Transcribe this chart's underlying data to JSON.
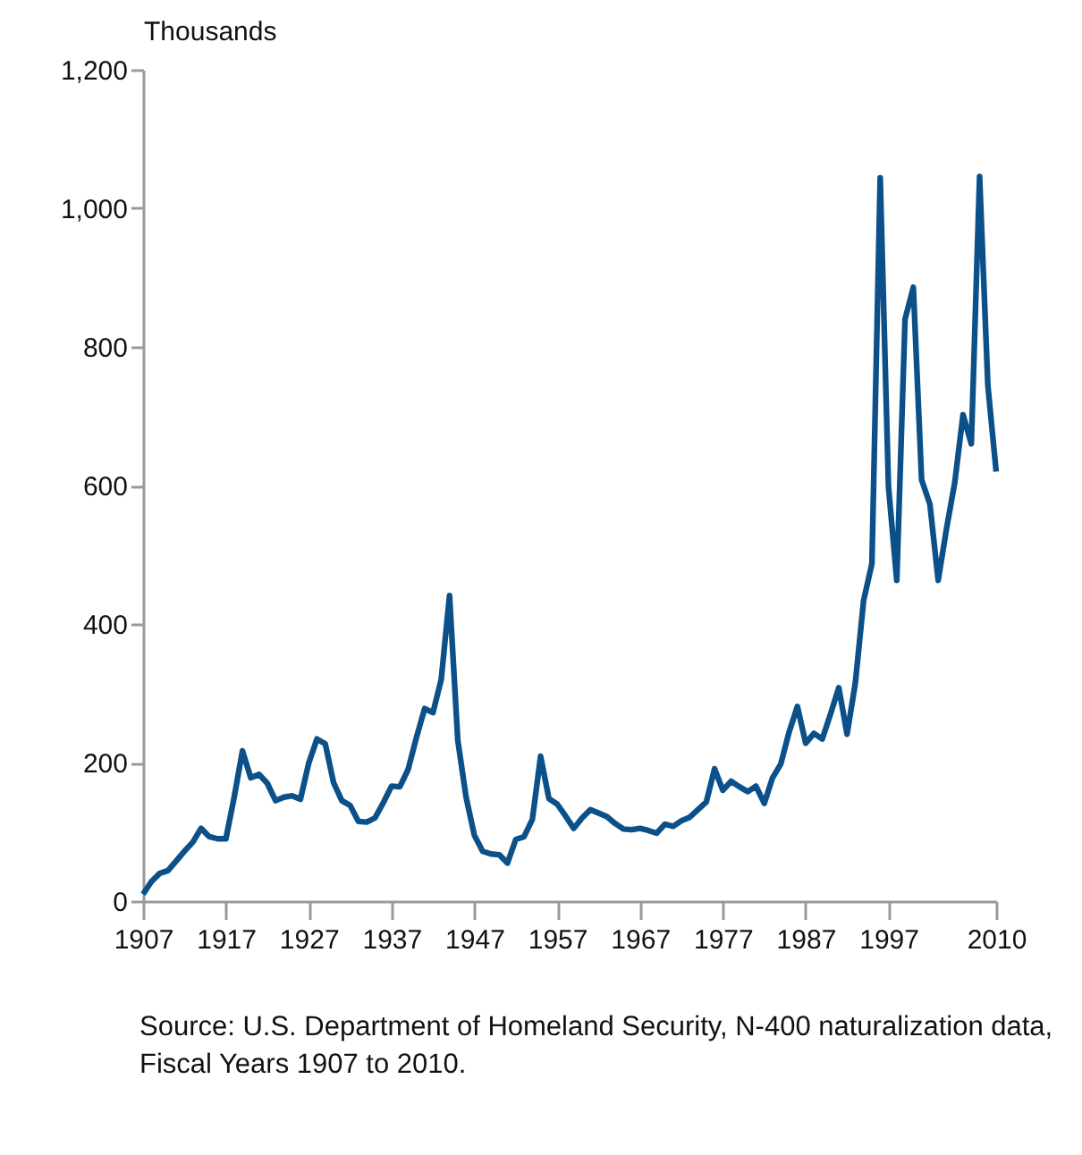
{
  "chart_data": {
    "type": "line",
    "ylabel": "Thousands",
    "annotations": [
      "Source: U.S. Department of Homeland Security, N-400 naturalization data, Fiscal Years 1907 to 2010."
    ],
    "x": [
      1907,
      1908,
      1909,
      1910,
      1911,
      1912,
      1913,
      1914,
      1915,
      1916,
      1917,
      1918,
      1919,
      1920,
      1921,
      1922,
      1923,
      1924,
      1925,
      1926,
      1927,
      1928,
      1929,
      1930,
      1931,
      1932,
      1933,
      1934,
      1935,
      1936,
      1937,
      1938,
      1939,
      1940,
      1941,
      1942,
      1943,
      1944,
      1945,
      1946,
      1947,
      1948,
      1949,
      1950,
      1951,
      1952,
      1953,
      1954,
      1955,
      1956,
      1957,
      1958,
      1959,
      1960,
      1961,
      1962,
      1963,
      1964,
      1965,
      1966,
      1967,
      1968,
      1969,
      1970,
      1971,
      1972,
      1973,
      1974,
      1975,
      1976,
      1977,
      1978,
      1979,
      1980,
      1981,
      1982,
      1983,
      1984,
      1985,
      1986,
      1987,
      1988,
      1989,
      1990,
      1991,
      1992,
      1993,
      1994,
      1995,
      1996,
      1997,
      1998,
      1999,
      2000,
      2001,
      2002,
      2003,
      2004,
      2005,
      2006,
      2007,
      2008,
      2009,
      2010
    ],
    "series": [
      {
        "color": "#0b5089",
        "values": [
          10,
          28,
          40,
          44,
          58,
          72,
          85,
          105,
          93,
          90,
          90,
          150,
          217,
          178,
          183,
          170,
          145,
          150,
          152,
          147,
          199,
          234,
          227,
          171,
          145,
          138,
          115,
          114,
          120,
          142,
          166,
          165,
          190,
          236,
          278,
          272,
          320,
          441,
          232,
          150,
          95,
          72,
          68,
          67,
          55,
          89,
          93,
          118,
          209,
          148,
          140,
          123,
          105,
          120,
          132,
          127,
          122,
          112,
          104,
          103,
          105,
          102,
          98,
          111,
          108,
          116,
          121,
          132,
          143,
          191,
          160,
          173,
          165,
          158,
          166,
          141,
          178,
          198,
          244,
          281,
          228,
          242,
          234,
          270,
          308,
          241,
          315,
          434,
          487,
          1044,
          598,
          463,
          840,
          886,
          608,
          573,
          463,
          537,
          604,
          702,
          660,
          1046,
          744,
          620
        ]
      }
    ],
    "xlim": [
      1907,
      2010
    ],
    "xticks": [
      1907,
      1917,
      1927,
      1937,
      1947,
      1957,
      1967,
      1977,
      1987,
      1997,
      2010
    ],
    "ylim": [
      0,
      1200
    ],
    "yticks": [
      0,
      200,
      400,
      600,
      800,
      {
        "value": 1000,
        "label": "1,000"
      },
      {
        "value": 1200,
        "label": "1,200"
      }
    ],
    "grid": false,
    "legend": false,
    "marker": "none",
    "line_style": "solid"
  }
}
